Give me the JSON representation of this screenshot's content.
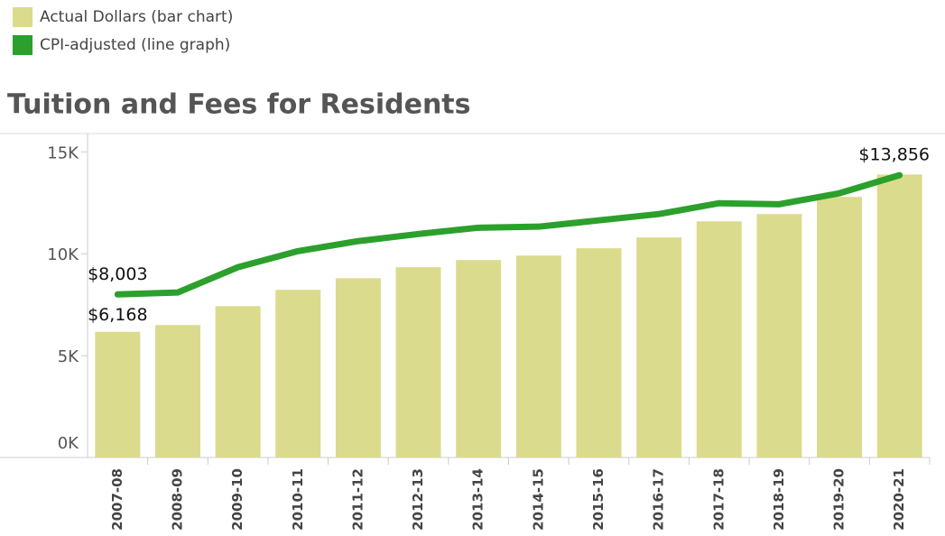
{
  "chart_data": {
    "type": "bar",
    "title": "Tuition and Fees for Residents",
    "categories": [
      "2007-08",
      "2008-09",
      "2009-10",
      "2010-11",
      "2011-12",
      "2012-13",
      "2013-14",
      "2014-15",
      "2015-16",
      "2016-17",
      "2017-18",
      "2018-19",
      "2019-20",
      "2020-21"
    ],
    "series": [
      {
        "name": "Actual Dollars (bar chart)",
        "type": "bar",
        "color": "#dbdb8d",
        "values": [
          6168,
          6500,
          7430,
          8230,
          8800,
          9340,
          9690,
          9910,
          10270,
          10800,
          11590,
          11950,
          12790,
          13890
        ],
        "value_labels": [
          "$6,168",
          null,
          null,
          null,
          null,
          null,
          null,
          null,
          null,
          null,
          null,
          null,
          null,
          null
        ]
      },
      {
        "name": "CPI-adjusted (line graph)",
        "type": "line",
        "color": "#2ca02c",
        "values": [
          8003,
          8100,
          9340,
          10130,
          10620,
          10970,
          11280,
          11330,
          11640,
          11950,
          12480,
          12430,
          12970,
          13856
        ],
        "value_labels": [
          "$8,003",
          null,
          null,
          null,
          null,
          null,
          null,
          null,
          null,
          null,
          null,
          null,
          null,
          "$13,856"
        ]
      }
    ],
    "ylim": [
      0,
      15900
    ],
    "yticks": [
      {
        "value": 0,
        "label": "0K"
      },
      {
        "value": 5000,
        "label": "5K"
      },
      {
        "value": 10000,
        "label": "10K"
      },
      {
        "value": 15000,
        "label": "15K"
      }
    ],
    "grid": false
  }
}
